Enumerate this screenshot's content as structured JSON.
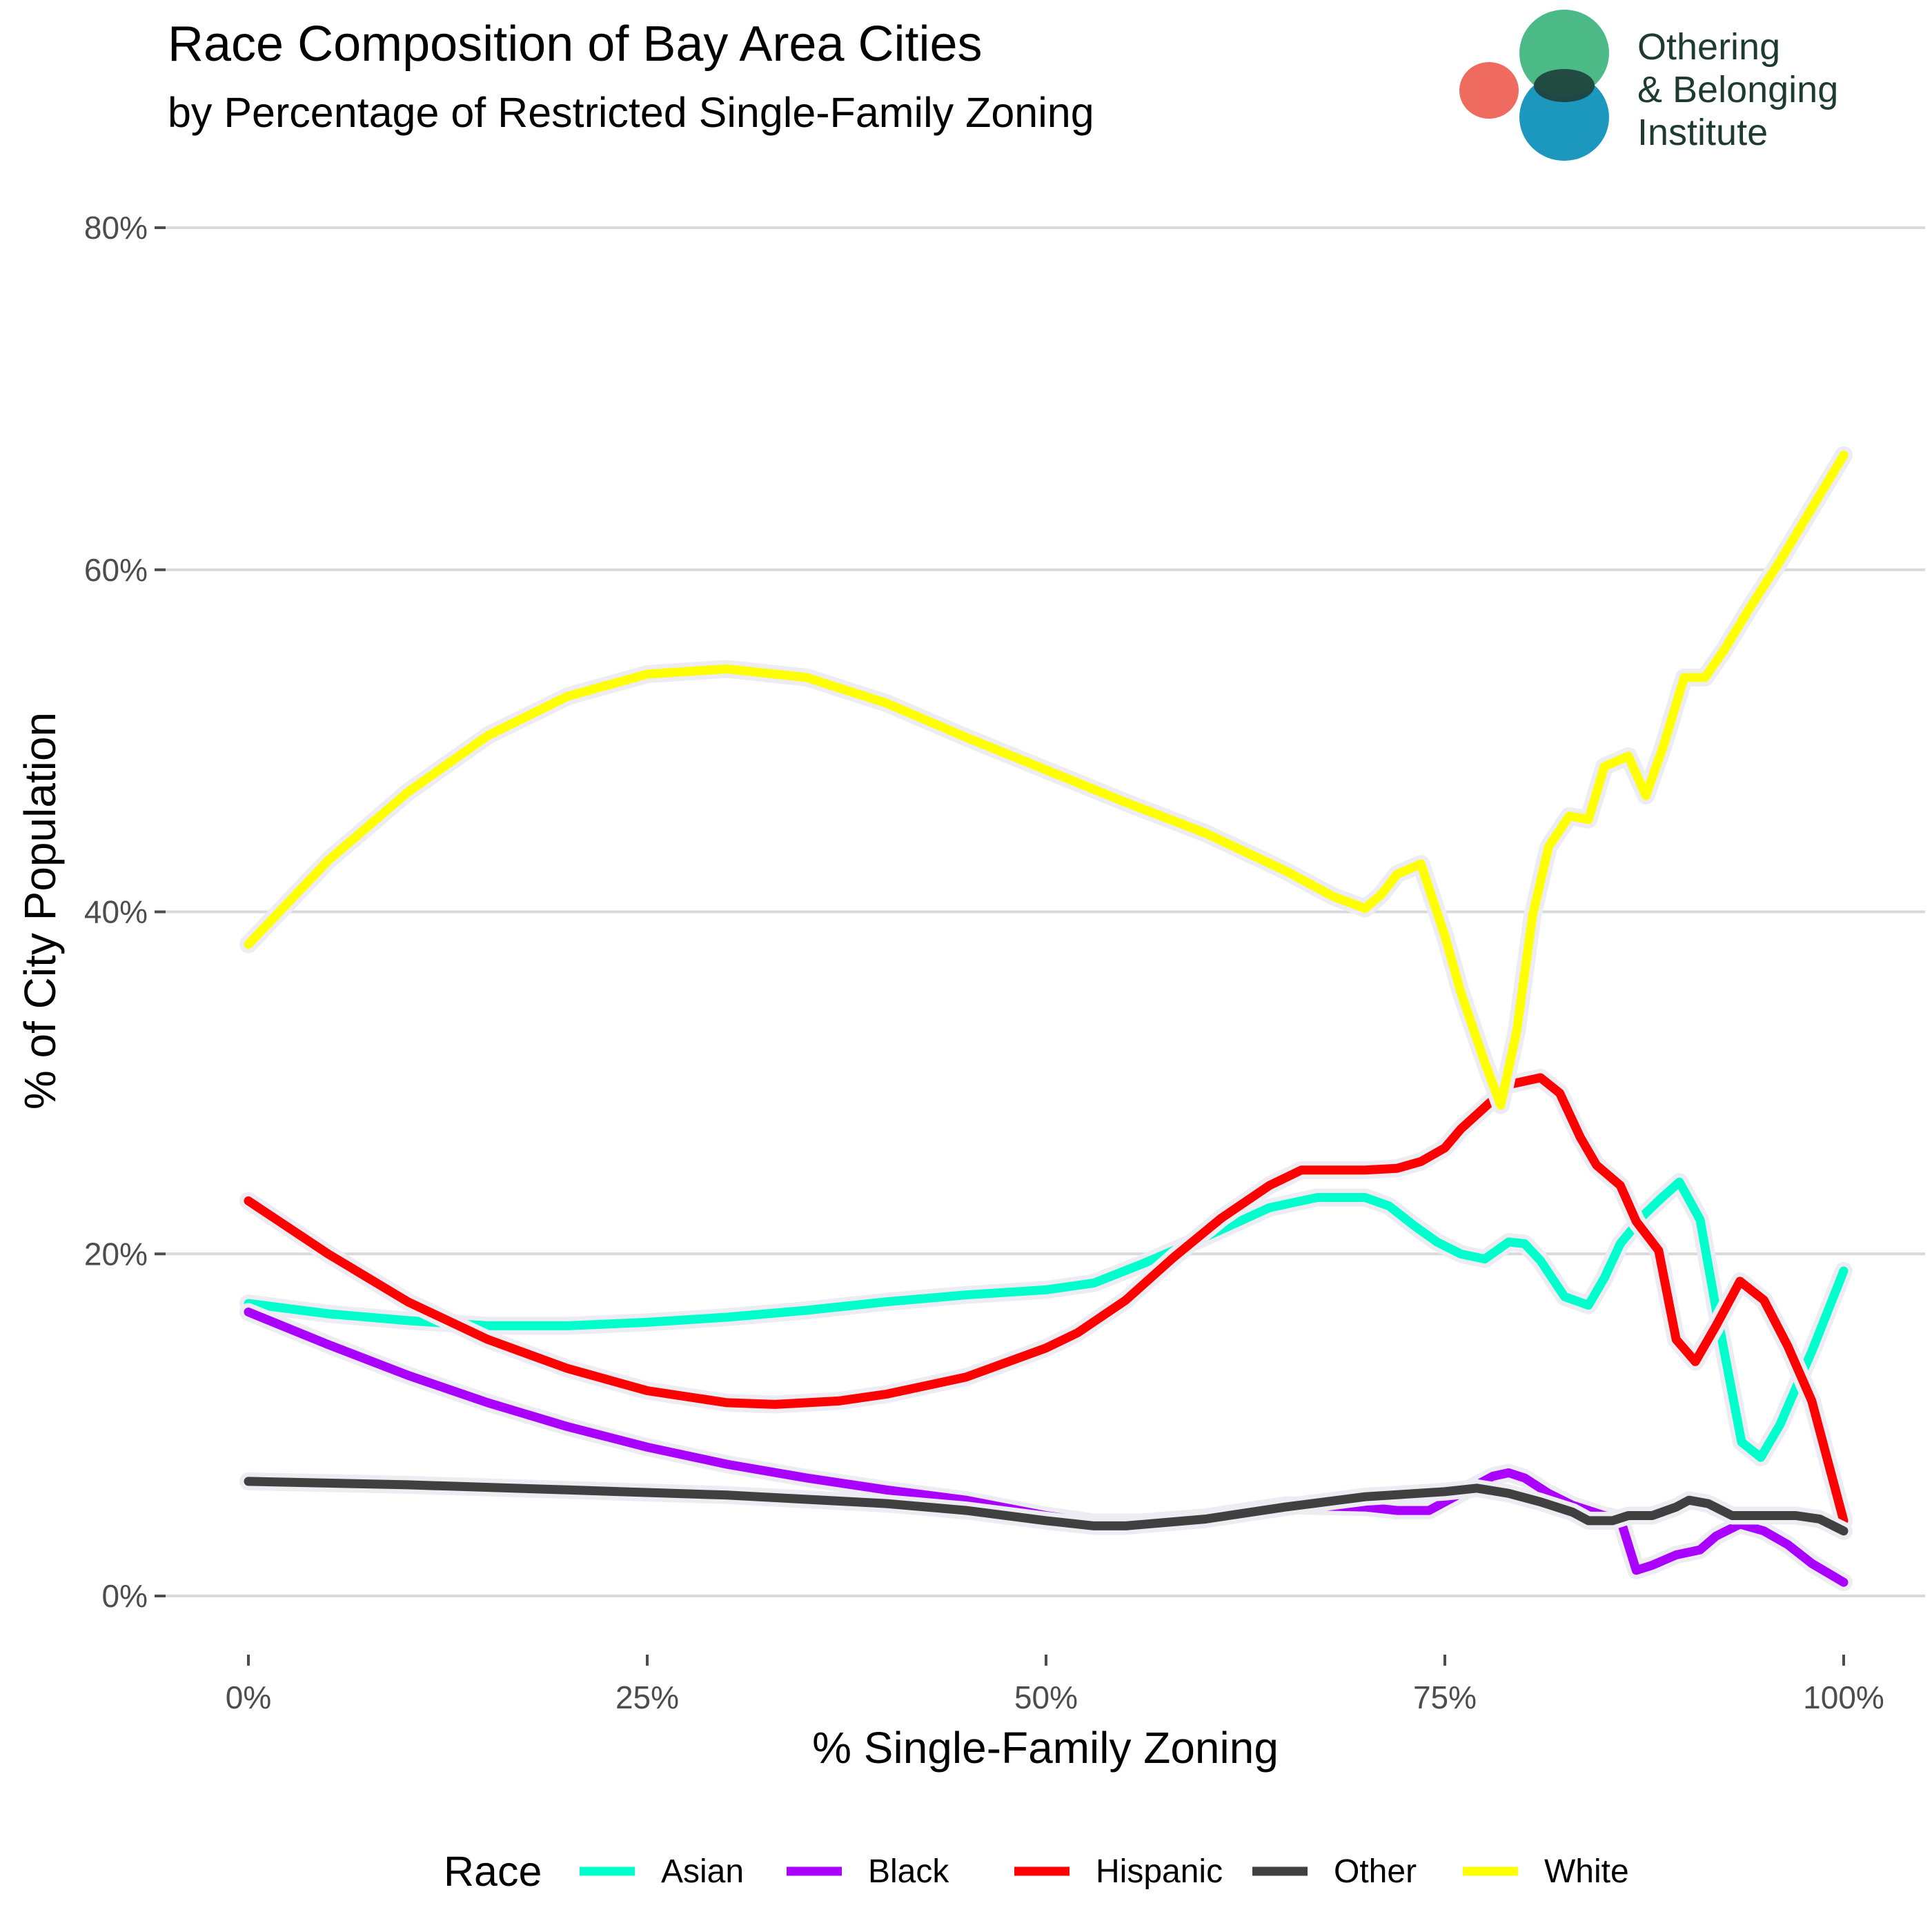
{
  "chart_data": {
    "type": "line",
    "title": "Race Composition of Bay Area Cities",
    "subtitle": "by Percentage of Restricted Single-Family Zoning",
    "xlabel": "% Single-Family Zoning",
    "ylabel": "% of City Population",
    "xlim": [
      0,
      100
    ],
    "ylim": [
      0,
      80
    ],
    "x_ticks": [
      0,
      25,
      50,
      75,
      100
    ],
    "x_tick_labels": [
      "0%",
      "25%",
      "50%",
      "75%",
      "100%"
    ],
    "y_ticks": [
      0,
      20,
      40,
      60,
      80
    ],
    "y_tick_labels": [
      "0%",
      "20%",
      "40%",
      "60%",
      "80%"
    ],
    "grid": "horizontal major lines",
    "legend": {
      "title": "Race",
      "position": "bottom"
    },
    "series": [
      {
        "name": "Asian",
        "color": "#00FFCC",
        "points": [
          [
            0,
            17.1
          ],
          [
            5,
            16.5
          ],
          [
            10,
            16.1
          ],
          [
            15,
            15.8
          ],
          [
            20,
            15.8
          ],
          [
            25,
            16.0
          ],
          [
            30,
            16.3
          ],
          [
            35,
            16.7
          ],
          [
            40,
            17.2
          ],
          [
            45,
            17.6
          ],
          [
            50,
            17.9
          ],
          [
            53,
            18.3
          ],
          [
            56,
            19.4
          ],
          [
            60,
            21.0
          ],
          [
            64,
            22.7
          ],
          [
            67,
            23.3
          ],
          [
            70,
            23.3
          ],
          [
            71.5,
            22.8
          ],
          [
            73,
            21.7
          ],
          [
            74.5,
            20.7
          ],
          [
            76,
            20.0
          ],
          [
            77.5,
            19.7
          ],
          [
            79,
            20.7
          ],
          [
            80,
            20.6
          ],
          [
            81,
            19.6
          ],
          [
            82.5,
            17.5
          ],
          [
            84,
            17.0
          ],
          [
            85,
            18.6
          ],
          [
            86,
            20.6
          ],
          [
            87.5,
            22.3
          ],
          [
            88.5,
            23.2
          ],
          [
            89.7,
            24.2
          ],
          [
            91,
            22.0
          ],
          [
            92,
            16.8
          ],
          [
            93.6,
            9.0
          ],
          [
            94.8,
            8.1
          ],
          [
            96,
            10.0
          ],
          [
            98,
            14.3
          ],
          [
            100,
            19.0
          ]
        ]
      },
      {
        "name": "Black",
        "color": "#AA00FF",
        "points": [
          [
            0,
            16.6
          ],
          [
            5,
            14.7
          ],
          [
            10,
            12.9
          ],
          [
            15,
            11.3
          ],
          [
            20,
            9.9
          ],
          [
            25,
            8.7
          ],
          [
            30,
            7.7
          ],
          [
            35,
            6.9
          ],
          [
            40,
            6.2
          ],
          [
            45,
            5.6
          ],
          [
            50,
            4.7
          ],
          [
            53,
            4.3
          ],
          [
            56,
            4.3
          ],
          [
            60,
            4.6
          ],
          [
            65,
            5.3
          ],
          [
            70,
            5.2
          ],
          [
            72,
            5.0
          ],
          [
            74,
            5.0
          ],
          [
            76,
            6.0
          ],
          [
            78,
            7.0
          ],
          [
            79,
            7.2
          ],
          [
            80,
            6.9
          ],
          [
            81.5,
            6.0
          ],
          [
            83,
            5.3
          ],
          [
            85,
            4.7
          ],
          [
            86,
            4.5
          ],
          [
            87,
            1.5
          ],
          [
            88,
            1.8
          ],
          [
            89.5,
            2.4
          ],
          [
            91,
            2.7
          ],
          [
            92,
            3.5
          ],
          [
            93.5,
            4.2
          ],
          [
            95,
            3.8
          ],
          [
            96.5,
            3.0
          ],
          [
            98,
            1.9
          ],
          [
            100,
            0.8
          ]
        ]
      },
      {
        "name": "Hispanic",
        "color": "#FF0000",
        "points": [
          [
            0,
            23.1
          ],
          [
            5,
            20.0
          ],
          [
            10,
            17.2
          ],
          [
            15,
            15.0
          ],
          [
            20,
            13.3
          ],
          [
            25,
            12.0
          ],
          [
            30,
            11.3
          ],
          [
            33,
            11.2
          ],
          [
            37,
            11.4
          ],
          [
            40,
            11.8
          ],
          [
            45,
            12.8
          ],
          [
            50,
            14.5
          ],
          [
            52,
            15.4
          ],
          [
            55,
            17.3
          ],
          [
            58,
            19.8
          ],
          [
            61,
            22.1
          ],
          [
            64,
            24.0
          ],
          [
            66,
            24.9
          ],
          [
            68,
            24.9
          ],
          [
            70,
            24.9
          ],
          [
            72,
            25.0
          ],
          [
            73.5,
            25.4
          ],
          [
            75,
            26.2
          ],
          [
            76,
            27.3
          ],
          [
            78,
            29.0
          ],
          [
            79,
            29.9
          ],
          [
            81,
            30.3
          ],
          [
            82.2,
            29.4
          ],
          [
            83.5,
            26.8
          ],
          [
            84.5,
            25.2
          ],
          [
            86,
            24.0
          ],
          [
            87,
            21.9
          ],
          [
            88.4,
            20.2
          ],
          [
            89.5,
            15.0
          ],
          [
            90.7,
            13.7
          ],
          [
            92,
            15.8
          ],
          [
            93.5,
            18.4
          ],
          [
            95,
            17.3
          ],
          [
            96.5,
            14.6
          ],
          [
            98,
            11.4
          ],
          [
            100,
            4.4
          ]
        ]
      },
      {
        "name": "Other",
        "color": "#404040",
        "points": [
          [
            0,
            6.7
          ],
          [
            10,
            6.5
          ],
          [
            20,
            6.2
          ],
          [
            30,
            5.9
          ],
          [
            40,
            5.4
          ],
          [
            45,
            5.0
          ],
          [
            50,
            4.4
          ],
          [
            53,
            4.1
          ],
          [
            55,
            4.1
          ],
          [
            60,
            4.5
          ],
          [
            65,
            5.2
          ],
          [
            70,
            5.8
          ],
          [
            75,
            6.1
          ],
          [
            77,
            6.3
          ],
          [
            79,
            6.0
          ],
          [
            81,
            5.5
          ],
          [
            83,
            4.9
          ],
          [
            84,
            4.4
          ],
          [
            85.5,
            4.4
          ],
          [
            86.5,
            4.7
          ],
          [
            88,
            4.7
          ],
          [
            89.5,
            5.2
          ],
          [
            90.3,
            5.6
          ],
          [
            91.5,
            5.4
          ],
          [
            93,
            4.7
          ],
          [
            95,
            4.7
          ],
          [
            97,
            4.7
          ],
          [
            98.5,
            4.5
          ],
          [
            100,
            3.8
          ]
        ]
      },
      {
        "name": "White",
        "color": "#FFFF00",
        "points": [
          [
            0,
            38.1
          ],
          [
            5,
            43.0
          ],
          [
            10,
            47.0
          ],
          [
            15,
            50.3
          ],
          [
            20,
            52.6
          ],
          [
            25,
            53.9
          ],
          [
            30,
            54.2
          ],
          [
            35,
            53.7
          ],
          [
            40,
            52.2
          ],
          [
            45,
            50.2
          ],
          [
            50,
            48.3
          ],
          [
            55,
            46.4
          ],
          [
            60,
            44.6
          ],
          [
            65,
            42.4
          ],
          [
            68,
            40.9
          ],
          [
            70,
            40.2
          ],
          [
            71,
            41.0
          ],
          [
            72,
            42.2
          ],
          [
            73.5,
            42.8
          ],
          [
            75,
            38.6
          ],
          [
            76,
            35.3
          ],
          [
            77.5,
            31.2
          ],
          [
            78.5,
            28.7
          ],
          [
            79.5,
            33.0
          ],
          [
            80.5,
            39.8
          ],
          [
            81.5,
            43.8
          ],
          [
            82.8,
            45.6
          ],
          [
            84,
            45.4
          ],
          [
            85,
            48.5
          ],
          [
            86.5,
            49.1
          ],
          [
            87.6,
            46.8
          ],
          [
            88.7,
            49.7
          ],
          [
            90,
            53.7
          ],
          [
            91.3,
            53.7
          ],
          [
            92.5,
            55.3
          ],
          [
            94,
            57.6
          ],
          [
            96,
            60.5
          ],
          [
            98,
            63.6
          ],
          [
            100,
            66.7
          ]
        ]
      }
    ]
  },
  "logo": {
    "lines": [
      "Othering",
      "& Belonging",
      "Institute"
    ]
  }
}
